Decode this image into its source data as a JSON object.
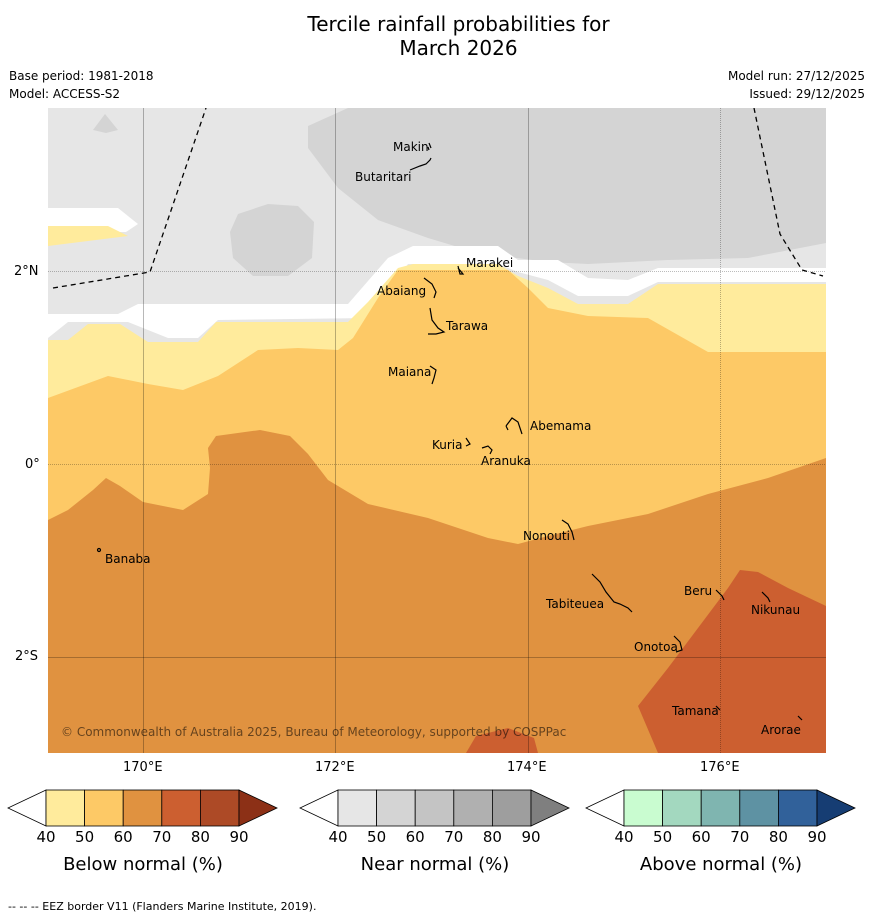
{
  "title": {
    "line1": "Tercile rainfall probabilities for",
    "line2": "March 2026"
  },
  "meta": {
    "base_period": "Base period: 1981-2018",
    "model": "Model: ACCESS-S2",
    "model_run": "Model run: 27/12/2025",
    "issued": "Issued: 29/12/2025"
  },
  "map": {
    "lat_labels": [
      "2°N",
      "0°",
      "2°S"
    ],
    "lon_labels": [
      "170°E",
      "172°E",
      "174°E",
      "176°E"
    ],
    "copyright": "© Commonwealth of Australia 2025, Bureau of Meteorology, supported by COSPPac",
    "islands": [
      {
        "name": "Makin"
      },
      {
        "name": "Butaritari"
      },
      {
        "name": "Marakei"
      },
      {
        "name": "Abaiang"
      },
      {
        "name": "Tarawa"
      },
      {
        "name": "Maiana"
      },
      {
        "name": "Abemama"
      },
      {
        "name": "Kuria"
      },
      {
        "name": "Aranuka"
      },
      {
        "name": "Banaba"
      },
      {
        "name": "Nonouti"
      },
      {
        "name": "Beru"
      },
      {
        "name": "Nikunau"
      },
      {
        "name": "Tabiteuea"
      },
      {
        "name": "Onotoa"
      },
      {
        "name": "Tamana"
      },
      {
        "name": "Arorae"
      }
    ]
  },
  "colorbars": [
    {
      "label": "Below normal (%)",
      "ticks": [
        "40",
        "50",
        "60",
        "70",
        "80",
        "90"
      ],
      "colors": [
        "#ffffff",
        "#ffeb9c",
        "#fdc966",
        "#e09240",
        "#cc5f30",
        "#ad4a26",
        "#8c3016"
      ]
    },
    {
      "label": "Near normal (%)",
      "ticks": [
        "40",
        "50",
        "60",
        "70",
        "80",
        "90"
      ],
      "colors": [
        "#ffffff",
        "#e6e6e6",
        "#d4d4d4",
        "#c4c4c4",
        "#b0b0b0",
        "#9e9e9e",
        "#7f7f7f"
      ]
    },
    {
      "label": "Above normal (%)",
      "ticks": [
        "40",
        "50",
        "60",
        "70",
        "80",
        "90"
      ],
      "colors": [
        "#ffffff",
        "#c9fcd0",
        "#a3d8bf",
        "#7fb5b0",
        "#5e92a3",
        "#31619a",
        "#163d73"
      ]
    }
  ],
  "footnote": "-- -- -- EEZ border V11 (Flanders Marine Institute, 2019)."
}
